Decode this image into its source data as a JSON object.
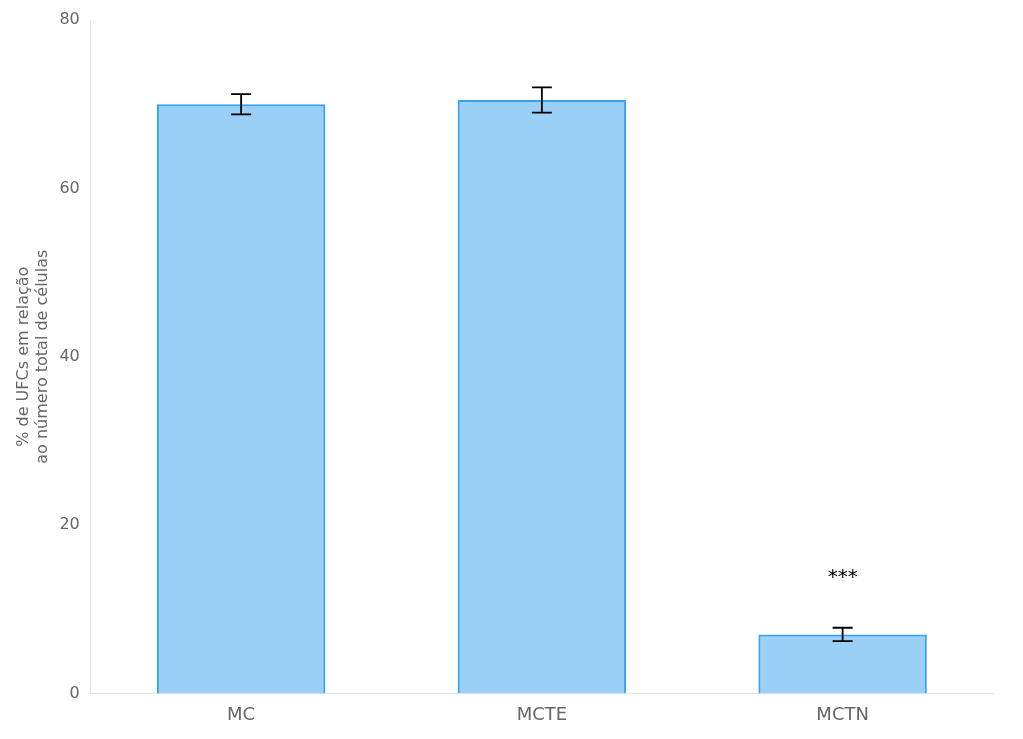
{
  "chart_data": {
    "type": "bar",
    "categories": [
      "MC",
      "MCTE",
      "MCTN"
    ],
    "values": [
      70.0,
      70.5,
      7.0
    ],
    "errors": [
      1.2,
      1.5,
      0.8
    ],
    "ylabel": [
      "% de UFCs em relação",
      "ao número total de células"
    ],
    "annotations": [
      {
        "text": "***",
        "x": "MCTN",
        "y": 12.5
      }
    ],
    "ylim": [
      0,
      80
    ],
    "yticks": [
      0,
      20,
      40,
      60,
      80
    ],
    "grid": false
  }
}
